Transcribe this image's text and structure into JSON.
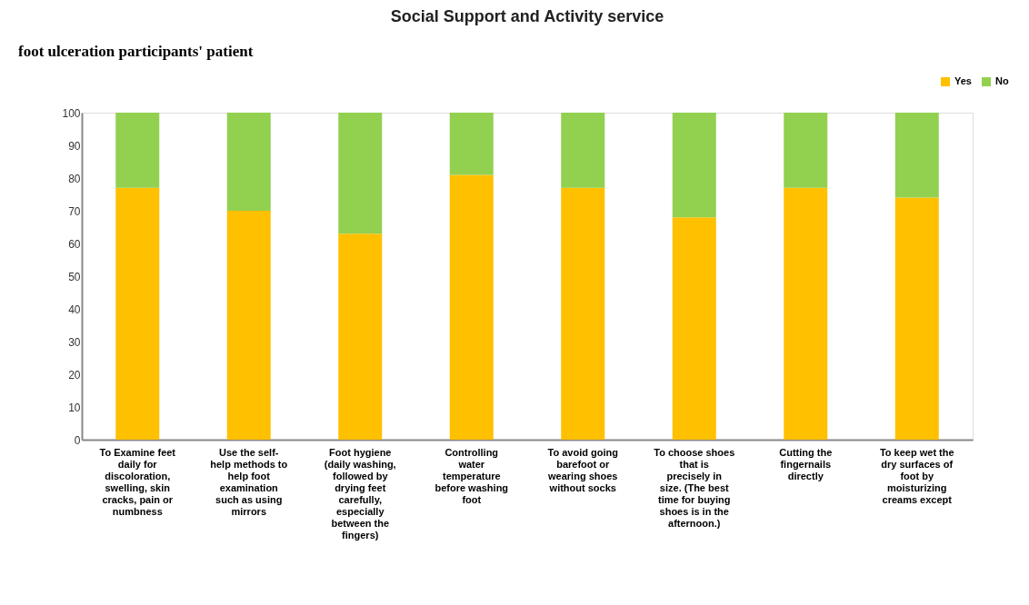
{
  "chart_data": {
    "type": "bar",
    "title": "Social Support and Activity service",
    "annotations": [
      "foot ulceration participants' patient"
    ],
    "categories": [
      "To Examine feet daily for discoloration, swelling, skin cracks, pain or numbness",
      "Use the self-help methods to help foot examination such as using mirrors",
      "Foot hygiene (daily washing, followed by drying feet carefully, especially between the fingers)",
      "Controlling water temperature before washing foot",
      "To avoid going barefoot or wearing shoes without socks",
      "To choose shoes that is precisely in size. (The best time for buying shoes is in the afternoon.)",
      "Cutting the fingernails directly",
      "To keep wet the dry surfaces of foot by moisturizing creams except"
    ],
    "series": [
      {
        "name": "Yes",
        "color": "#ffc000",
        "values": [
          77,
          70,
          63,
          81,
          77,
          68,
          77,
          74
        ]
      },
      {
        "name": "No",
        "color": "#92d050",
        "values": [
          23,
          30,
          37,
          19,
          23,
          32,
          23,
          26
        ]
      }
    ],
    "stacked": true,
    "ylim": [
      0,
      100
    ],
    "yticks": [
      0,
      10,
      20,
      30,
      40,
      50,
      60,
      70,
      80,
      90,
      100
    ],
    "grid": false,
    "legend": "top right"
  }
}
